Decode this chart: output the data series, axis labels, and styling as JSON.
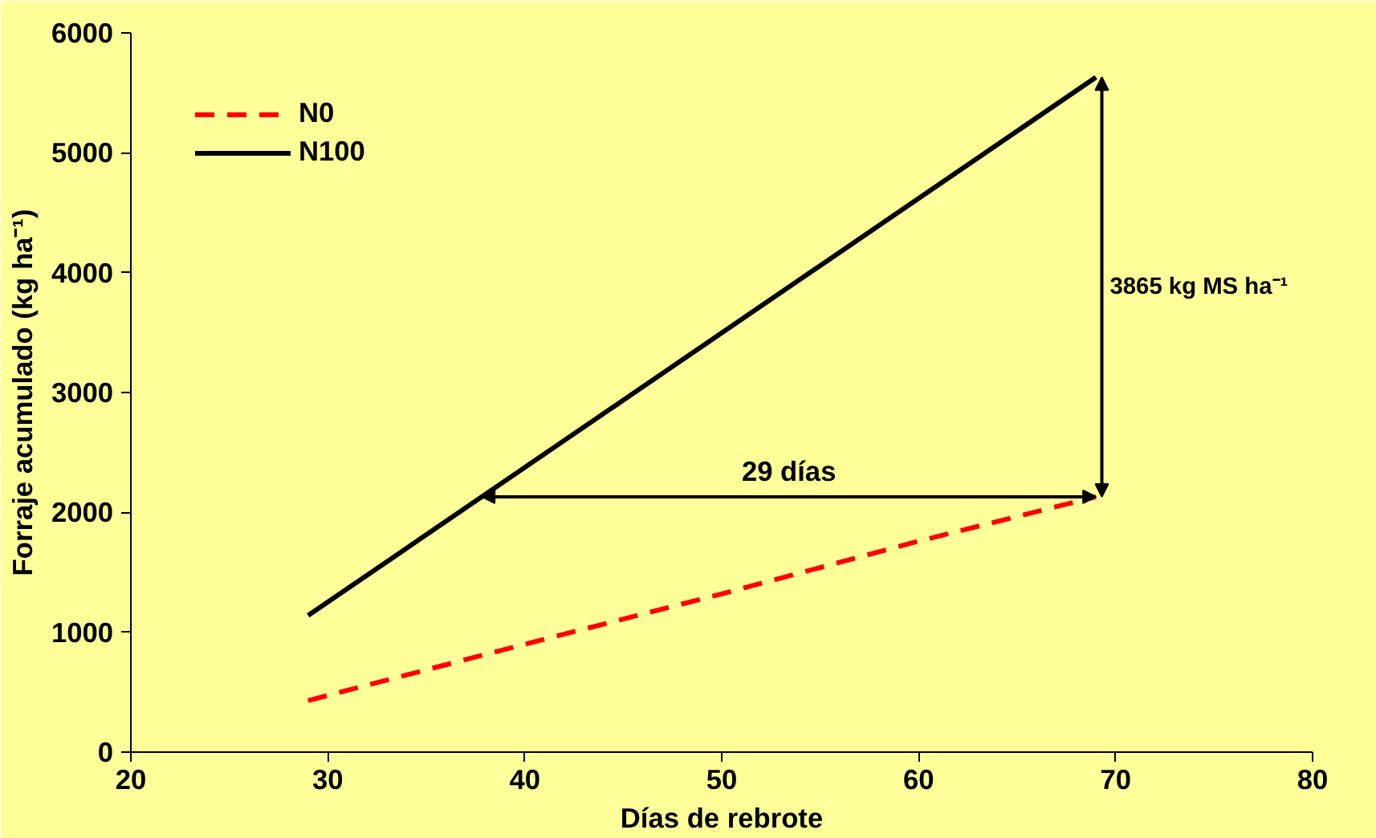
{
  "chart_data": {
    "type": "line",
    "xlabel": "Días de rebrote",
    "ylabel": "Forraje acumulado (kg ha⁻¹)",
    "xlim": [
      20,
      80
    ],
    "xticks": [
      20,
      30,
      40,
      50,
      60,
      70,
      80
    ],
    "ylim": [
      0,
      6000
    ],
    "yticks": [
      0,
      1000,
      2000,
      3000,
      4000,
      5000,
      6000
    ],
    "grid": false,
    "legend": "top left",
    "series": [
      {
        "name": "N0",
        "color": "#ff0000",
        "line_style": "dashed",
        "x": [
          29,
          40,
          50,
          60,
          69
        ],
        "values": [
          430,
          900,
          1320,
          1760,
          2130
        ]
      },
      {
        "name": "N100",
        "color": "#000000",
        "line_style": "solid",
        "x": [
          29,
          69
        ],
        "values": [
          1140,
          5630
        ]
      }
    ],
    "annotations": [
      "29 días",
      "3865 kg MS ha⁻¹"
    ]
  }
}
